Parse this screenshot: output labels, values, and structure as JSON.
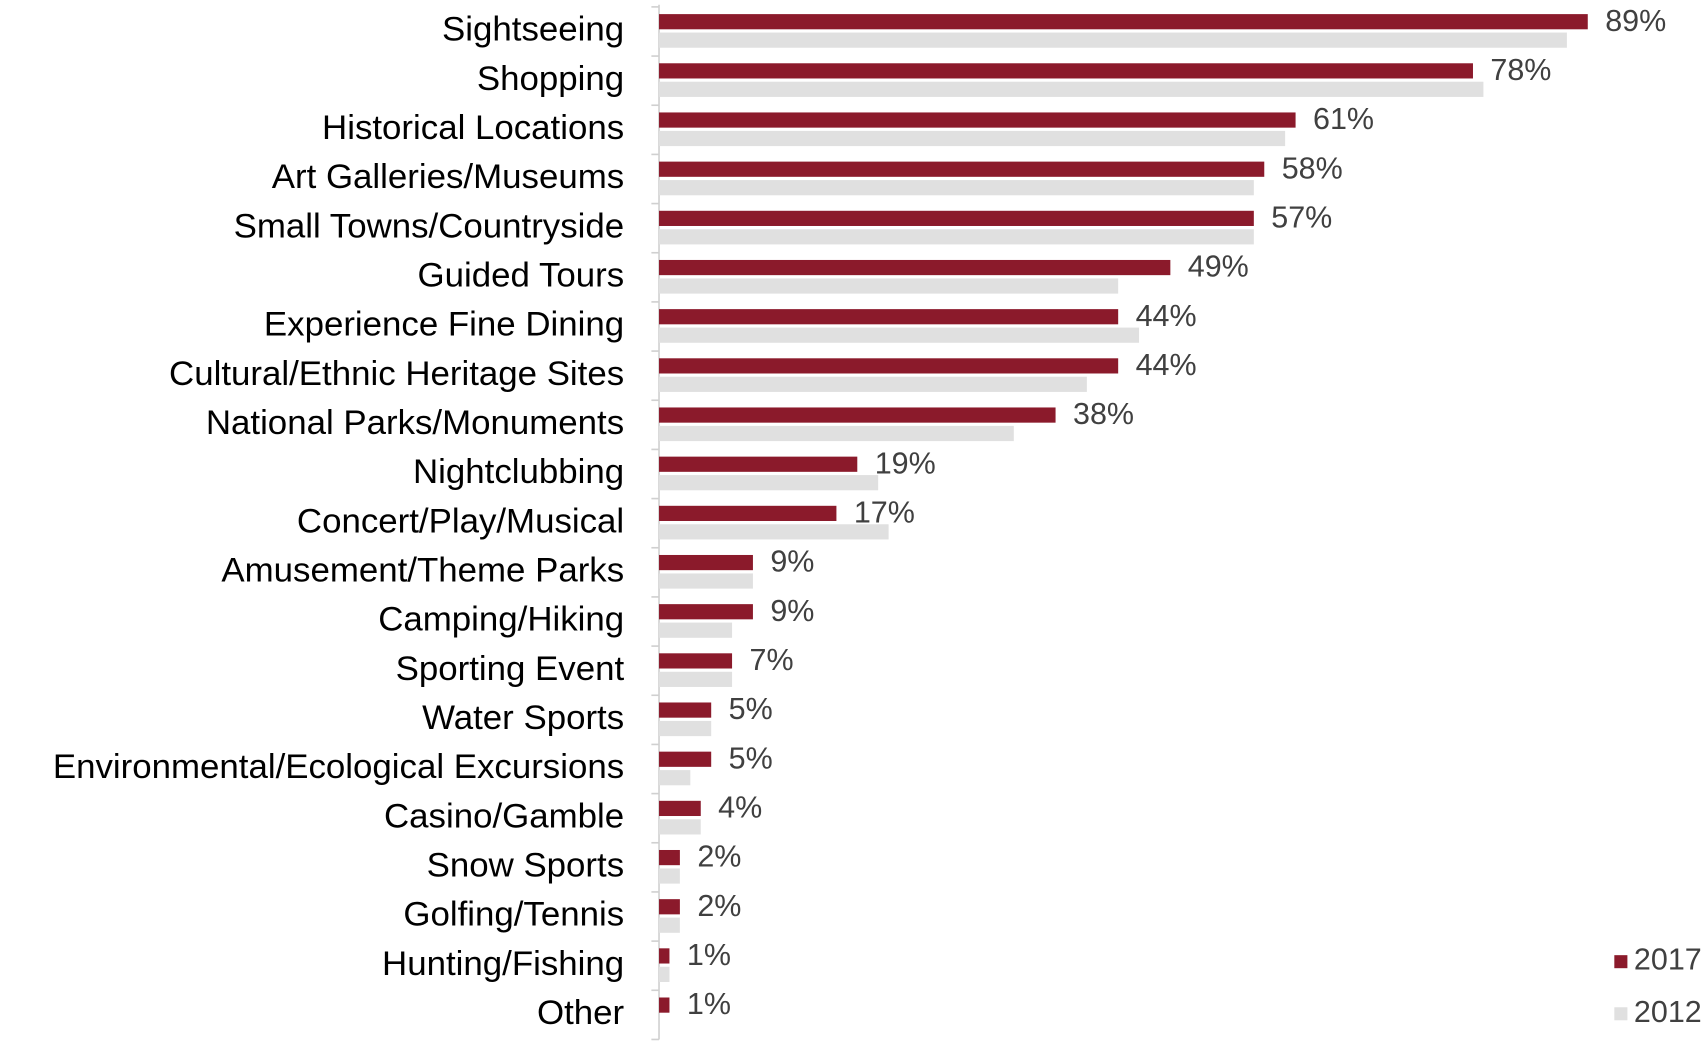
{
  "chart_data": {
    "type": "hbar",
    "categories": [
      "Sightseeing",
      "Shopping",
      "Historical Locations",
      "Art Galleries/Museums",
      "Small Towns/Countryside",
      "Guided Tours",
      "Experience Fine Dining",
      "Cultural/Ethnic Heritage Sites",
      "National Parks/Monuments",
      "Nightclubbing",
      "Concert/Play/Musical",
      "Amusement/Theme Parks",
      "Camping/Hiking",
      "Sporting Event",
      "Water Sports",
      "Environmental/Ecological Excursions",
      "Casino/Gamble",
      "Snow Sports",
      "Golfing/Tennis",
      "Hunting/Fishing",
      "Other"
    ],
    "series": [
      {
        "name": "2017",
        "color": "#8b1a2b",
        "values": [
          89,
          78,
          61,
          58,
          57,
          49,
          44,
          44,
          38,
          19,
          17,
          9,
          9,
          7,
          5,
          5,
          4,
          2,
          2,
          1,
          1
        ],
        "value_labels": [
          "89%",
          "78%",
          "61%",
          "58%",
          "57%",
          "49%",
          "44%",
          "44%",
          "38%",
          "19%",
          "17%",
          "9%",
          "9%",
          "7%",
          "5%",
          "5%",
          "4%",
          "2%",
          "2%",
          "1%",
          "1%"
        ]
      },
      {
        "name": "2012",
        "color": "#e0e0e0",
        "values": [
          87,
          79,
          60,
          57,
          57,
          44,
          46,
          41,
          34,
          21,
          22,
          9,
          7,
          7,
          5,
          3,
          4,
          2,
          2,
          1,
          null
        ]
      }
    ],
    "xlim": [
      0,
      100
    ],
    "legend": "bottom-right"
  }
}
